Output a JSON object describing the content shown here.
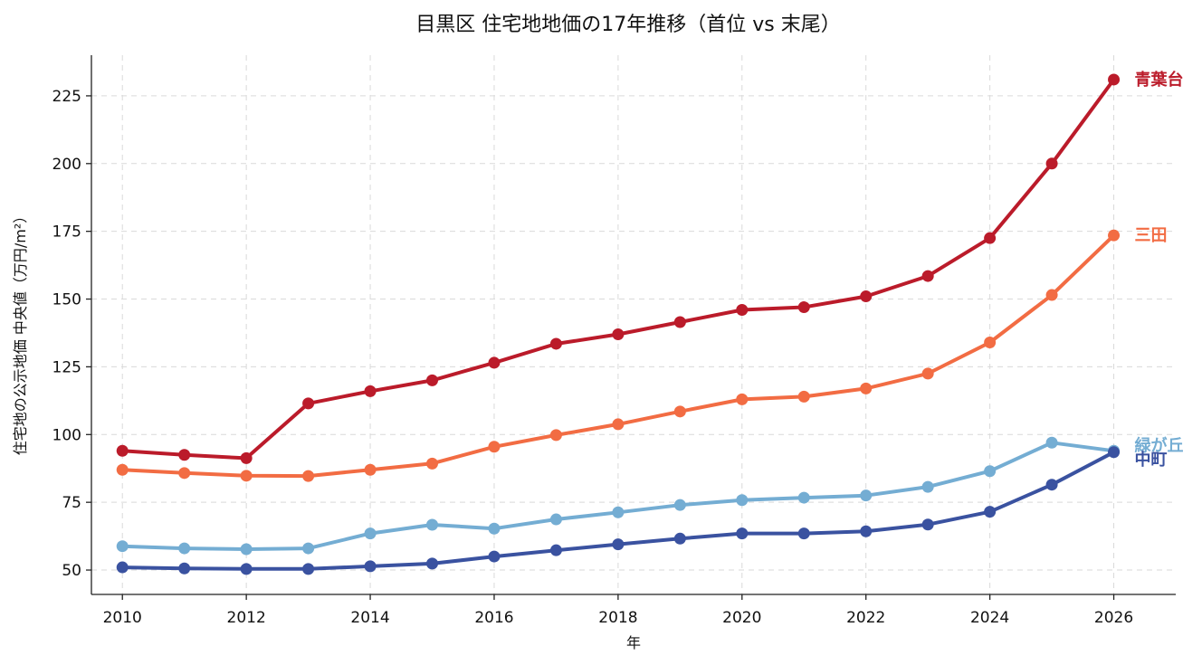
{
  "chart_data": {
    "type": "line",
    "title": "目黒区 住宅地地価の17年推移（首位 vs 末尾）",
    "xlabel": "年",
    "ylabel": "住宅地の公示地価 中央値（万円/m²）",
    "x": [
      2010,
      2011,
      2012,
      2013,
      2014,
      2015,
      2016,
      2017,
      2018,
      2019,
      2020,
      2021,
      2022,
      2023,
      2024,
      2025,
      2026
    ],
    "xlim": [
      2009.5,
      2027
    ],
    "ylim": [
      41,
      240
    ],
    "xticks": [
      2010,
      2012,
      2014,
      2016,
      2018,
      2020,
      2022,
      2024,
      2026
    ],
    "yticks": [
      50,
      75,
      100,
      125,
      150,
      175,
      200,
      225
    ],
    "grid": true,
    "legend": "end-of-line labels",
    "series": [
      {
        "name": "青葉台",
        "color": "#bb1b2a",
        "values": [
          94,
          92.5,
          91.3,
          111.5,
          116,
          120,
          126.5,
          133.5,
          137,
          141.5,
          146,
          147,
          151,
          158.5,
          172.5,
          200,
          231
        ]
      },
      {
        "name": "三田",
        "color": "#f26c43",
        "values": [
          87,
          85.8,
          84.8,
          84.7,
          87,
          89.3,
          95.5,
          99.8,
          103.8,
          108.5,
          113,
          114,
          117,
          122.5,
          134,
          151.5,
          173.5
        ]
      },
      {
        "name": "緑が丘",
        "color": "#74add3",
        "values": [
          58.8,
          58,
          57.7,
          58,
          63.5,
          66.7,
          65.3,
          68.7,
          71.3,
          74,
          75.8,
          76.7,
          77.5,
          80.7,
          86.5,
          97,
          94
        ]
      },
      {
        "name": "中町",
        "color": "#3a52a0",
        "values": [
          51,
          50.6,
          50.4,
          50.4,
          51.4,
          52.4,
          55,
          57.3,
          59.5,
          61.6,
          63.5,
          63.5,
          64.3,
          66.8,
          71.5,
          81.5,
          93.5
        ]
      }
    ]
  }
}
